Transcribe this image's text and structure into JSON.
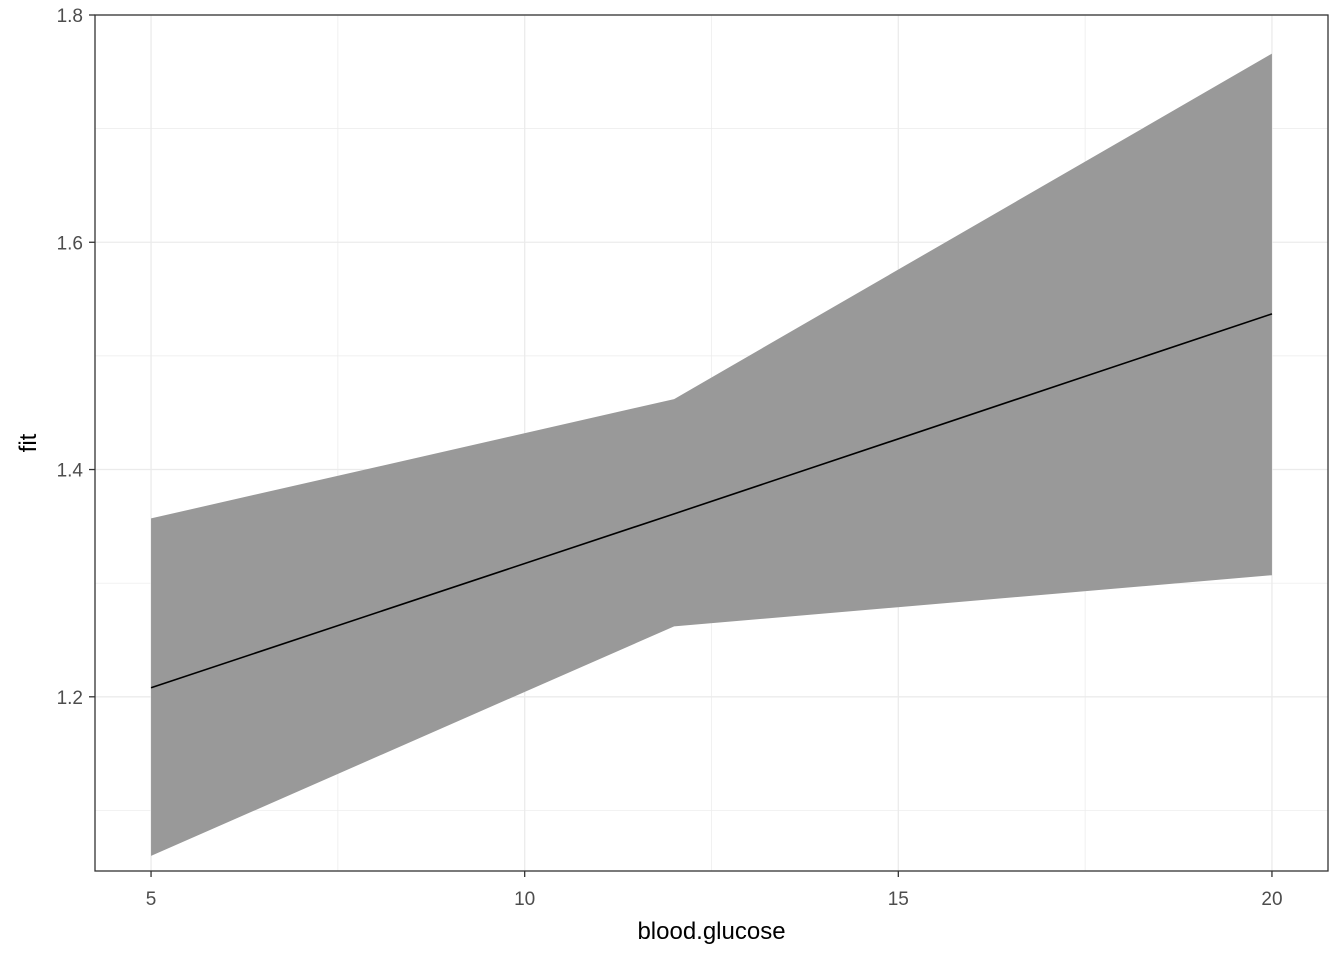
{
  "chart_data": {
    "type": "line",
    "xlabel": "blood.glucose",
    "ylabel": "fit",
    "xlim": [
      4.25,
      20.75
    ],
    "ylim": [
      1.0467,
      1.8
    ],
    "x_ticks": [
      5,
      10,
      15,
      20
    ],
    "x_tick_labels": [
      "5",
      "10",
      "15",
      "20"
    ],
    "y_ticks": [
      1.2,
      1.4,
      1.6,
      1.8
    ],
    "y_tick_labels": [
      "1.2",
      "1.4",
      "1.6",
      "1.8"
    ],
    "x_minor_ticks": [
      7.5,
      12.5,
      17.5
    ],
    "y_minor_ticks": [
      1.1,
      1.3,
      1.5,
      1.7
    ],
    "grid": true,
    "legend": "none",
    "series": [
      {
        "x": [
          5,
          12,
          20
        ],
        "fit": [
          1.208,
          1.361,
          1.537
        ],
        "lower": [
          1.06,
          1.262,
          1.307
        ],
        "upper": [
          1.357,
          1.462,
          1.766
        ]
      }
    ],
    "colors": {
      "ribbon": "#999999",
      "line": "#000000",
      "grid": "#ebebeb",
      "panel_border": "#333333",
      "tick_label": "#4d4d4d"
    }
  }
}
